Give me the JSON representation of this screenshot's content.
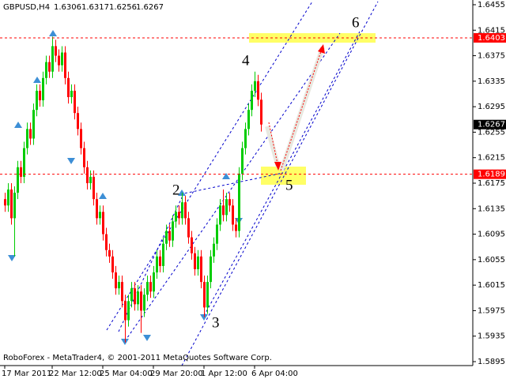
{
  "chart_data": {
    "type": "candlestick",
    "title": "GBPUSD,H4",
    "footer": "RoboForex - MetaTrader4, © 2001-2011 MetaQuotes Software Corp.",
    "categories": [
      "17 Mar 2011",
      null,
      null,
      null,
      null,
      null,
      null,
      null,
      null,
      null,
      null,
      null,
      null,
      null,
      null,
      "22 Mar 12:00",
      null,
      null,
      null,
      null,
      null,
      null,
      null,
      null,
      null,
      null,
      null,
      null,
      null,
      null,
      null,
      "25 Mar 04:00",
      null,
      null,
      null,
      null,
      null,
      null,
      null,
      null,
      null,
      null,
      null,
      null,
      null,
      null,
      null,
      "29 Mar 20:00",
      null,
      null,
      null,
      null,
      null,
      null,
      null,
      null,
      null,
      null,
      null,
      null,
      null,
      null,
      null,
      "1 Apr 12:00",
      null,
      null,
      null,
      null,
      null,
      null,
      null,
      null,
      null,
      null,
      null,
      null,
      null,
      null,
      null,
      "6 Apr 04:00",
      null,
      null
    ],
    "open": [
      1.615,
      1.614,
      1.6165,
      1.612,
      1.616,
      1.62,
      1.6185,
      1.623,
      1.626,
      1.6245,
      1.629,
      1.632,
      1.6305,
      1.634,
      1.6365,
      1.635,
      1.639,
      1.6375,
      1.636,
      1.638,
      1.634,
      1.631,
      1.632,
      1.6285,
      1.626,
      1.623,
      1.62,
      1.6175,
      1.6185,
      1.615,
      1.612,
      1.613,
      1.6095,
      1.607,
      1.606,
      1.6035,
      1.601,
      1.602,
      1.599,
      1.596,
      1.599,
      1.601,
      1.5985,
      1.6005,
      1.5975,
      1.6,
      1.602,
      1.6005,
      1.6035,
      1.606,
      1.6045,
      1.608,
      1.61,
      1.6085,
      1.6115,
      1.613,
      1.612,
      1.6145,
      1.612,
      1.609,
      1.6065,
      1.604,
      1.606,
      1.602,
      1.598,
      1.602,
      1.606,
      1.608,
      1.611,
      1.614,
      1.6125,
      1.615,
      1.614,
      1.611,
      1.61,
      1.619,
      1.623,
      1.626,
      1.629,
      1.632,
      1.6335,
      1.6306
    ],
    "high": [
      1.616,
      1.6175,
      1.6175,
      1.617,
      1.621,
      1.621,
      1.624,
      1.627,
      1.627,
      1.63,
      1.633,
      1.633,
      1.635,
      1.6375,
      1.6375,
      1.6405,
      1.64,
      1.6385,
      1.639,
      1.639,
      1.635,
      1.633,
      1.633,
      1.6295,
      1.627,
      1.624,
      1.621,
      1.6195,
      1.6195,
      1.616,
      1.614,
      1.614,
      1.6105,
      1.608,
      1.607,
      1.6045,
      1.603,
      1.603,
      1.6,
      1.6,
      1.602,
      1.602,
      1.6015,
      1.6015,
      1.601,
      1.603,
      1.603,
      1.6045,
      1.607,
      1.607,
      1.609,
      1.611,
      1.611,
      1.6125,
      1.614,
      1.614,
      1.616,
      1.6155,
      1.613,
      1.61,
      1.6075,
      1.607,
      1.607,
      1.603,
      1.603,
      1.607,
      1.609,
      1.612,
      1.615,
      1.6165,
      1.616,
      1.616,
      1.615,
      1.612,
      1.62,
      1.624,
      1.627,
      1.63,
      1.633,
      1.635,
      1.6345,
      1.6317
    ],
    "low": [
      1.613,
      1.613,
      1.611,
      1.606,
      1.615,
      1.6175,
      1.6175,
      1.622,
      1.6235,
      1.6235,
      1.628,
      1.6295,
      1.6295,
      1.633,
      1.634,
      1.634,
      1.6365,
      1.635,
      1.635,
      1.633,
      1.63,
      1.63,
      1.6275,
      1.625,
      1.622,
      1.619,
      1.6165,
      1.6165,
      1.614,
      1.611,
      1.611,
      1.6085,
      1.606,
      1.605,
      1.6025,
      1.6,
      1.6,
      1.598,
      1.5925,
      1.595,
      1.598,
      1.5975,
      1.5975,
      1.594,
      1.5965,
      1.599,
      1.5995,
      1.5995,
      1.6025,
      1.6035,
      1.6035,
      1.607,
      1.6075,
      1.6075,
      1.6105,
      1.611,
      1.611,
      1.611,
      1.608,
      1.6055,
      1.603,
      1.603,
      1.601,
      1.5965,
      1.597,
      1.601,
      1.605,
      1.607,
      1.61,
      1.6115,
      1.6115,
      1.613,
      1.61,
      1.609,
      1.609,
      1.618,
      1.622,
      1.625,
      1.628,
      1.631,
      1.6296,
      1.6256
    ],
    "close": [
      1.614,
      1.6165,
      1.612,
      1.616,
      1.62,
      1.6185,
      1.623,
      1.626,
      1.6245,
      1.629,
      1.632,
      1.6305,
      1.634,
      1.6365,
      1.635,
      1.639,
      1.6375,
      1.636,
      1.638,
      1.634,
      1.631,
      1.632,
      1.6285,
      1.626,
      1.623,
      1.62,
      1.6175,
      1.6185,
      1.615,
      1.612,
      1.613,
      1.6095,
      1.607,
      1.606,
      1.6035,
      1.601,
      1.602,
      1.599,
      1.596,
      1.599,
      1.601,
      1.5985,
      1.6005,
      1.5975,
      1.6,
      1.602,
      1.6005,
      1.6035,
      1.606,
      1.6045,
      1.608,
      1.61,
      1.6085,
      1.6115,
      1.613,
      1.612,
      1.6145,
      1.612,
      1.609,
      1.6065,
      1.604,
      1.606,
      1.602,
      1.598,
      1.602,
      1.606,
      1.608,
      1.611,
      1.614,
      1.6125,
      1.615,
      1.614,
      1.611,
      1.61,
      1.619,
      1.623,
      1.626,
      1.629,
      1.632,
      1.6335,
      1.6306,
      1.6267
    ],
    "up_color": "#00cc00",
    "down_color": "#ff0000",
    "ylim": [
      1.58888,
      1.64624
    ],
    "yticks": [
      1.6455,
      1.6415,
      1.6375,
      1.6335,
      1.6295,
      1.6255,
      1.6215,
      1.6175,
      1.6135,
      1.6095,
      1.6055,
      1.6015,
      1.5975,
      1.5935,
      1.5895
    ],
    "grid": false,
    "levels": [
      {
        "value": 1.6403,
        "color": "#ff0000"
      },
      {
        "value": 1.6189,
        "color": "#ff0000"
      }
    ],
    "annotations": [
      "2",
      "3",
      "4",
      "5",
      "6"
    ]
  }
}
